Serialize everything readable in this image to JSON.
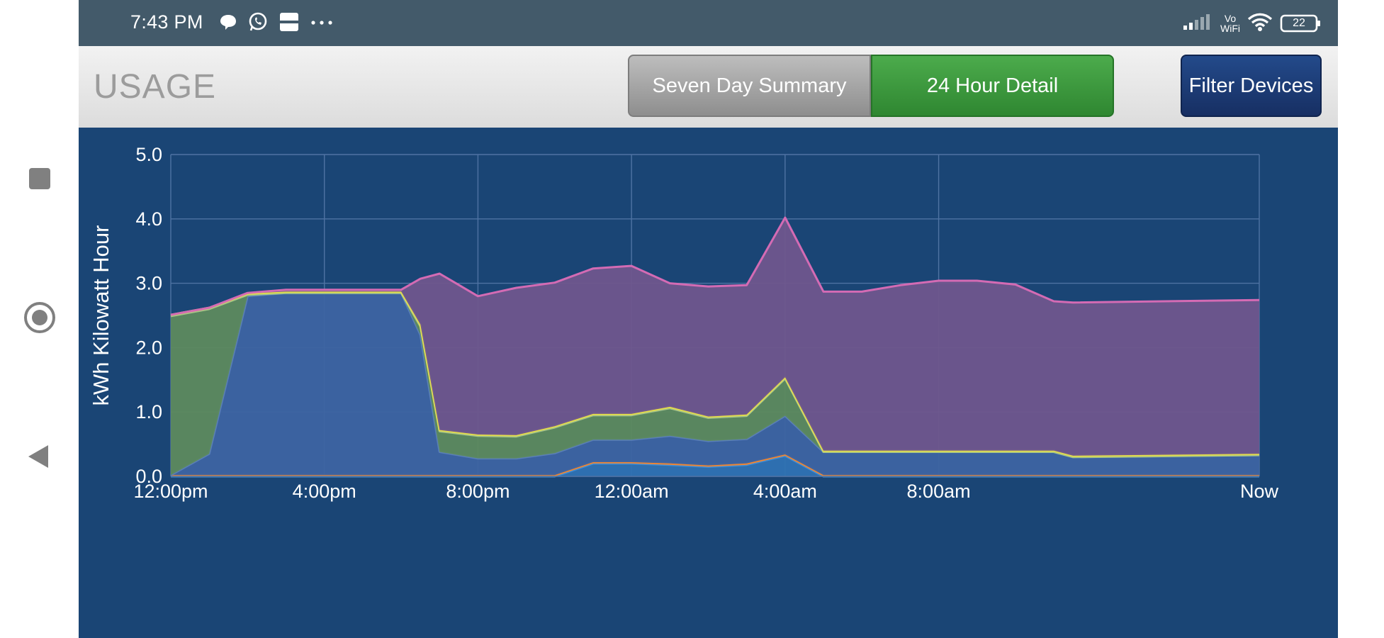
{
  "status_bar": {
    "time": "7:43 PM",
    "notification_icons": [
      "chat-bubble-icon",
      "whatsapp-icon",
      "app-notification-icon",
      "more-notifications-icon"
    ],
    "carrier_label_top": "Vo",
    "carrier_label_bottom": "WiFi",
    "battery_level": "22"
  },
  "nav": {
    "recents_icon": "square-icon",
    "home_icon": "circle-icon",
    "back_icon": "triangle-back-icon"
  },
  "header": {
    "title": "USAGE",
    "seven_day_label": "Seven Day Summary",
    "twenty_four_label": "24 Hour Detail",
    "filter_label": "Filter Devices",
    "active_tab": "24 Hour Detail"
  },
  "colors": {
    "app_background": "#1a4575",
    "status_bar": "#435a6a",
    "active_button": "#3a9a3c",
    "inactive_button": "#a6a6a6",
    "filter_button": "#1b3a72"
  },
  "chart_data": {
    "type": "area",
    "stacked": true,
    "title": "",
    "xlabel": "",
    "ylabel": "kWh Kilowatt Hour",
    "ylim": [
      0,
      5
    ],
    "y_ticks": [
      "0.0",
      "1.0",
      "2.0",
      "3.0",
      "4.0",
      "5.0"
    ],
    "x_tick_labels": [
      "12:00pm",
      "4:00pm",
      "8:00pm",
      "12:00am",
      "4:00am",
      "8:00am",
      "Now"
    ],
    "grid": true,
    "x_hours": [
      0,
      1,
      2,
      3,
      4,
      5,
      6,
      6.5,
      7,
      8,
      9,
      10,
      11,
      12,
      13,
      14,
      15,
      16,
      17,
      18,
      19,
      20,
      21,
      22,
      23,
      23.5,
      24
    ],
    "series": [
      {
        "color": "#2f72b3",
        "line_color": "#3f8fd8",
        "values": [
          0,
          0,
          0,
          0,
          0,
          0,
          0,
          0,
          0,
          0,
          0,
          0,
          0.2,
          0.2,
          0.18,
          0.15,
          0.18,
          0.32,
          0,
          0,
          0,
          0,
          0,
          0,
          0,
          0,
          0
        ]
      },
      {
        "color": "#f07a2e",
        "line_color": "#f5882f",
        "values": [
          0.02,
          0.02,
          0.02,
          0.02,
          0.02,
          0.02,
          0.02,
          0.02,
          0.02,
          0.02,
          0.02,
          0.02,
          0.02,
          0.02,
          0.02,
          0.02,
          0.02,
          0.02,
          0.02,
          0.02,
          0.02,
          0.02,
          0.02,
          0.02,
          0.02,
          0.02,
          0.02
        ]
      },
      {
        "color": "#3d64a2",
        "line_color": "#5a7fb8",
        "values": [
          0,
          0.33,
          2.78,
          2.83,
          2.83,
          2.83,
          2.83,
          2.18,
          0.36,
          0.26,
          0.26,
          0.34,
          0.35,
          0.35,
          0.43,
          0.38,
          0.38,
          0.6,
          0.36,
          0.36,
          0.36,
          0.36,
          0.36,
          0.36,
          0.36,
          0.28,
          0.31
        ]
      },
      {
        "color": "#5d8a5e",
        "line_color": "#a6c48a",
        "values": [
          2.47,
          2.25,
          0.02,
          0,
          0,
          0,
          0,
          0.13,
          0.32,
          0.35,
          0.34,
          0.4,
          0.38,
          0.38,
          0.43,
          0.36,
          0.36,
          0.58,
          0,
          0,
          0,
          0,
          0,
          0,
          0,
          0,
          0
        ]
      },
      {
        "color": "#c8cc4a",
        "line_color": "#e9e24a",
        "values": [
          0.02,
          0.02,
          0.02,
          0.02,
          0.02,
          0.02,
          0.02,
          0.03,
          0.02,
          0.02,
          0.02,
          0.02,
          0.02,
          0.02,
          0.02,
          0.02,
          0.02,
          0.02,
          0.02,
          0.02,
          0.02,
          0.02,
          0.02,
          0.02,
          0.02,
          0.02,
          0.02
        ]
      },
      {
        "color": "#6f568d",
        "line_color": "#d46bb4",
        "values": [
          0,
          0,
          0.01,
          0.03,
          0.03,
          0.03,
          0.03,
          0.71,
          2.43,
          2.15,
          2.29,
          2.23,
          2.26,
          2.3,
          1.92,
          2.02,
          2.01,
          2.48,
          2.47,
          2.47,
          2.57,
          2.64,
          2.64,
          2.58,
          2.32,
          2.38,
          2.39
        ]
      }
    ]
  }
}
